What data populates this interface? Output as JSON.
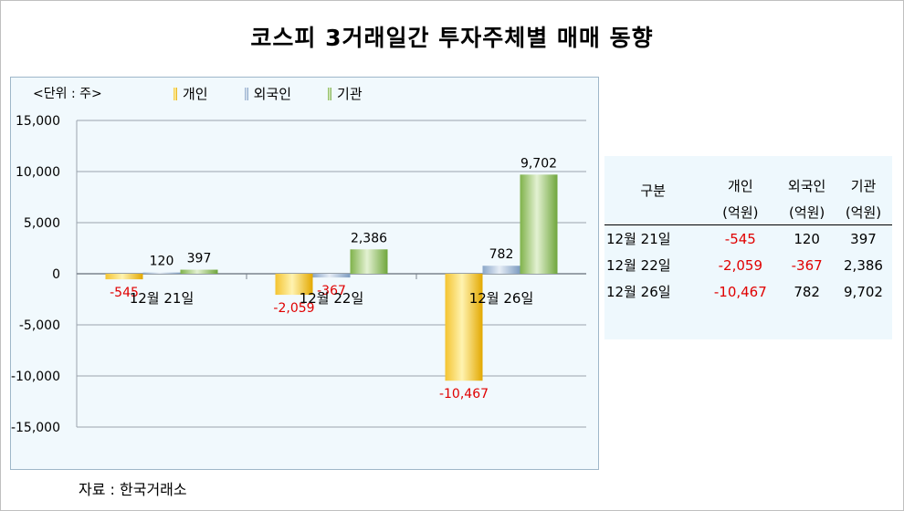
{
  "title": "코스피 3거래일간 투자주체별 매매 동향",
  "unit_label": "<단위 : 주>",
  "source": "자료 : 한국거래소",
  "colors": {
    "individual": "#f2c01d",
    "foreign": "#9fb6d2",
    "institution": "#8fbe5e",
    "negative_label": "#e00000"
  },
  "chart_data": {
    "type": "bar",
    "categories": [
      "12월 21일",
      "12월 22일",
      "12월 26일"
    ],
    "series": [
      {
        "name": "개인",
        "values": [
          -545,
          -2059,
          -10467
        ],
        "labels": [
          "-545",
          "-2,059",
          "-10,467"
        ]
      },
      {
        "name": "외국인",
        "values": [
          120,
          -367,
          782
        ],
        "labels": [
          "120",
          "-367",
          "782"
        ]
      },
      {
        "name": "기관",
        "values": [
          397,
          2386,
          9702
        ],
        "labels": [
          "397",
          "2,386",
          "9,702"
        ]
      }
    ],
    "ylim": [
      -15000,
      15000
    ],
    "yticks": [
      15000,
      10000,
      5000,
      0,
      -5000,
      -10000,
      -15000
    ],
    "ytick_labels": [
      "15,000",
      "10,000",
      "5,000",
      "0",
      "-5,000",
      "-10,000",
      "-15,000"
    ],
    "legend_position": "top"
  },
  "table": {
    "header1": [
      "구분",
      "개인",
      "외국인",
      "기관"
    ],
    "header2": [
      "(억원)",
      "(억원)",
      "(억원)"
    ],
    "rows": [
      {
        "label": "12월  21일",
        "cells": [
          "-545",
          "120",
          "397"
        ]
      },
      {
        "label": "12월  22일",
        "cells": [
          "-2,059",
          "-367",
          "2,386"
        ]
      },
      {
        "label": "12월  26일",
        "cells": [
          "-10,467",
          "782",
          "9,702"
        ]
      }
    ]
  }
}
